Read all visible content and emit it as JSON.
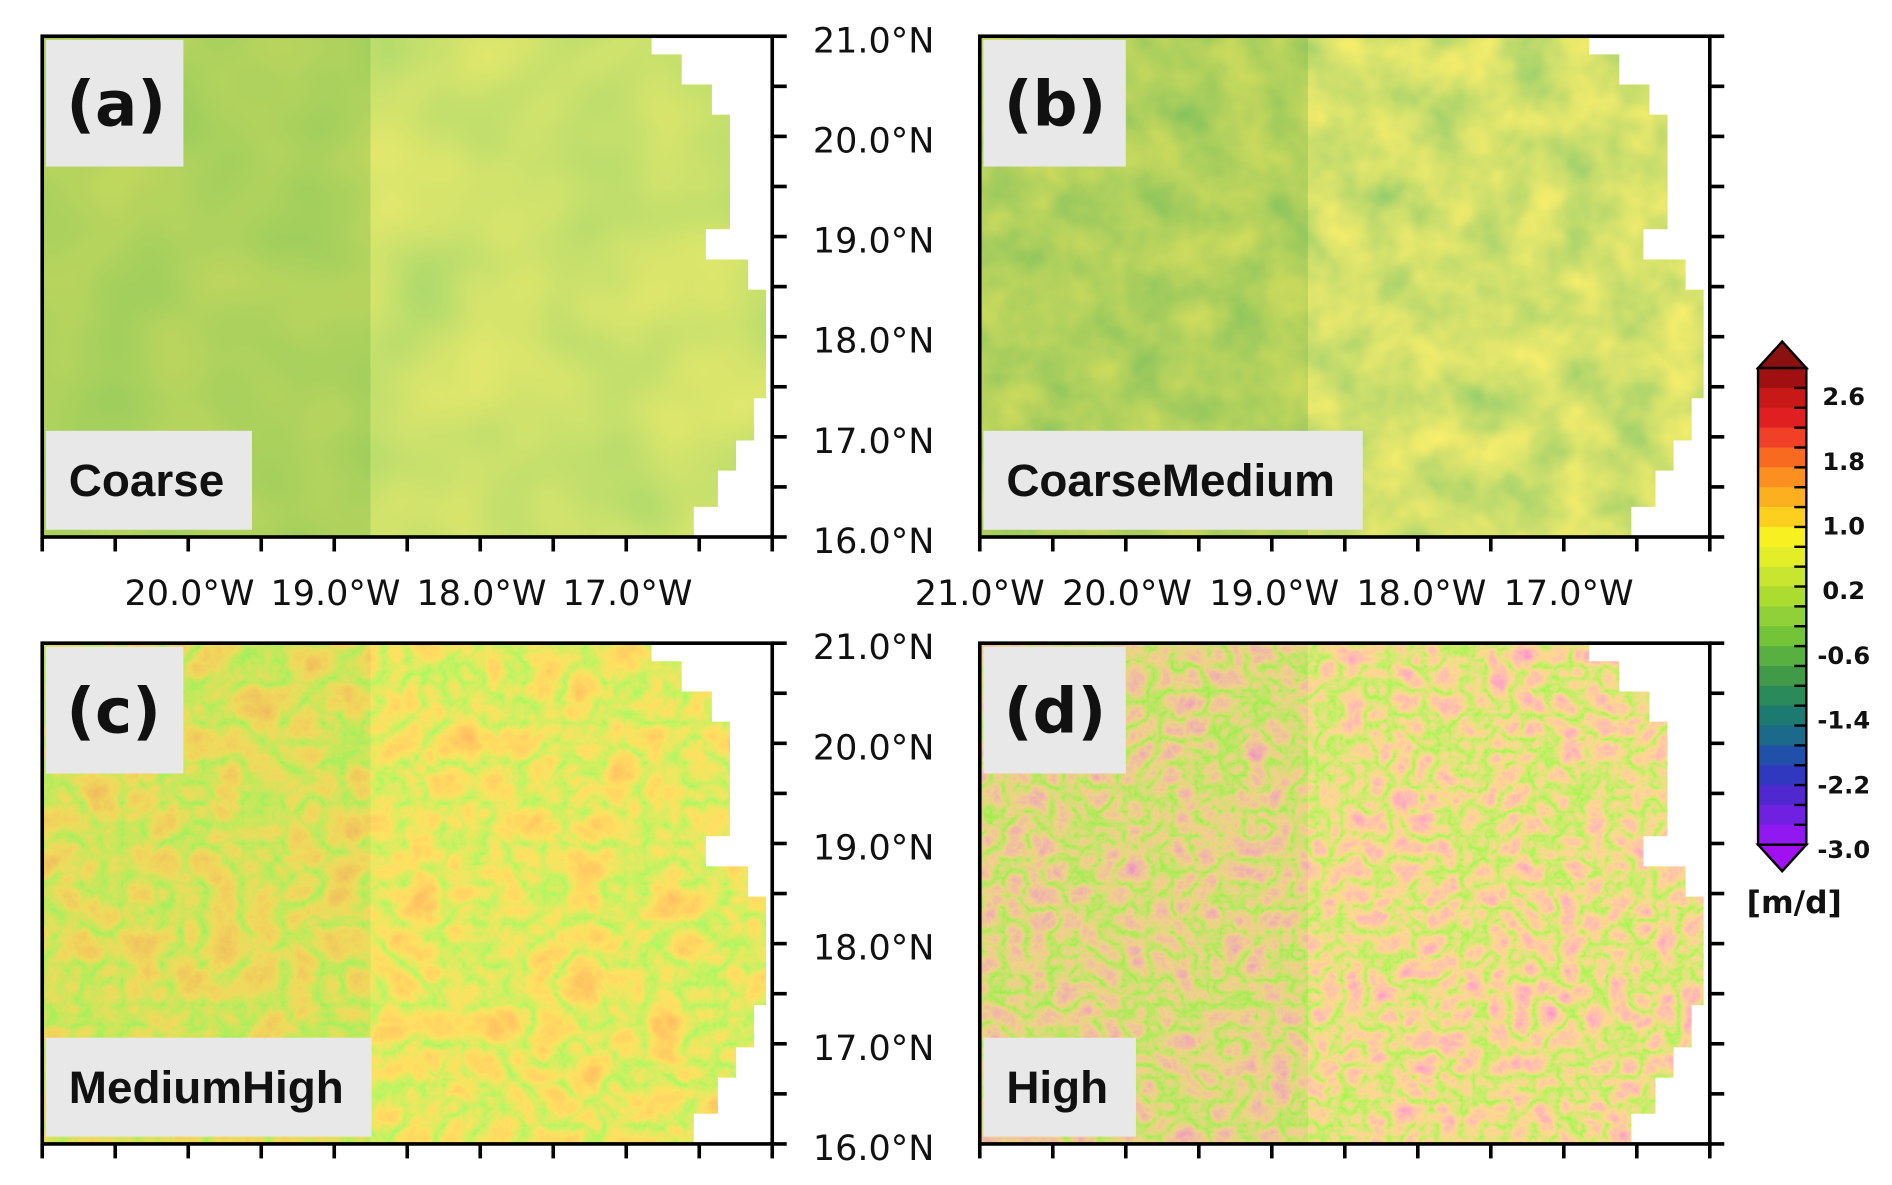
{
  "panels": [
    {
      "label": "(a)",
      "name": "Coarse"
    },
    {
      "label": "(b)",
      "name": "CoarseMedium"
    },
    {
      "label": "(c)",
      "name": "MediumHigh"
    },
    {
      "label": "(d)",
      "name": "High"
    }
  ],
  "lat_ticks": [
    "21.0°N",
    "20.0°N",
    "19.0°N",
    "18.0°N",
    "17.0°N",
    "16.0°N"
  ],
  "lon_ticks": {
    "left": [
      "20.0°W",
      "19.0°W",
      "18.0°W",
      "17.0°W"
    ],
    "right": [
      "21.0°W",
      "20.0°W",
      "19.0°W",
      "18.0°W",
      "17.0°W"
    ]
  },
  "colorbar": {
    "labels": [
      "2.6",
      "1.8",
      "1.0",
      "0.2",
      "-0.6",
      "-1.4",
      "-2.2",
      "-3.0"
    ],
    "unit": "[m/d]"
  }
}
